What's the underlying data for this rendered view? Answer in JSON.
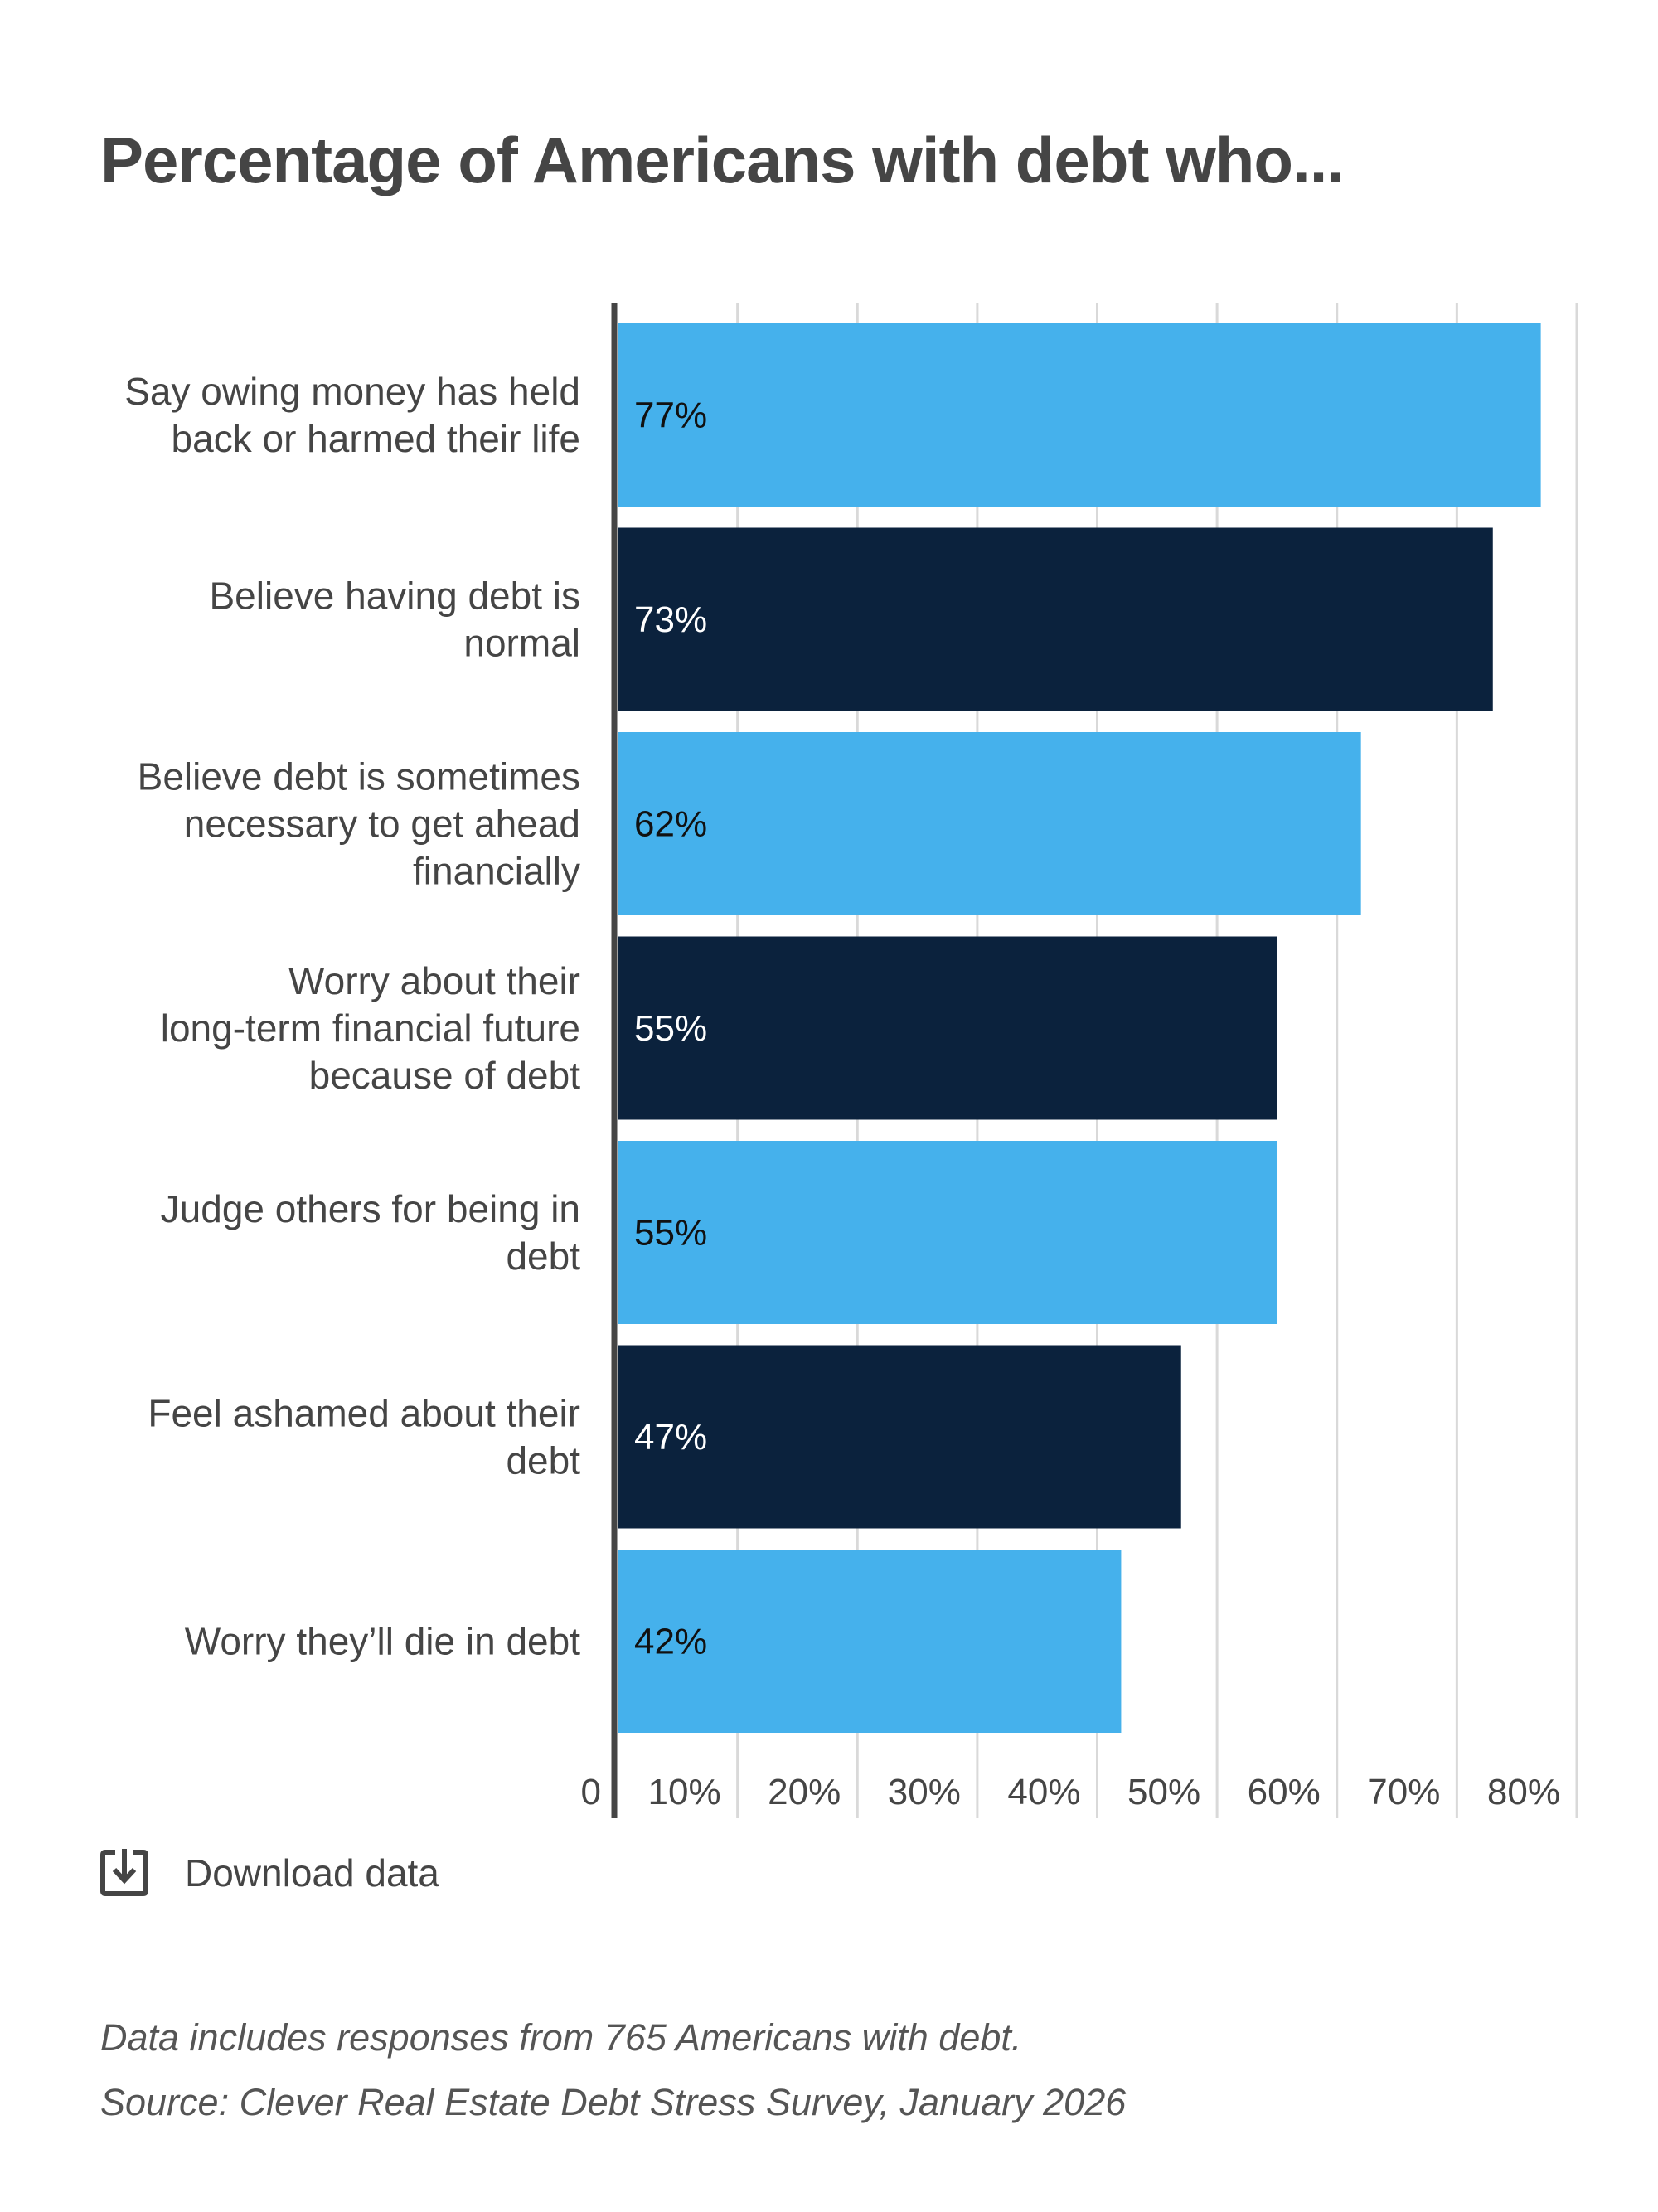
{
  "chart_data": {
    "type": "bar",
    "orientation": "horizontal",
    "title": "Percentage of Americans with debt who...",
    "categories": [
      [
        "Say owing money has held",
        "back or harmed their life"
      ],
      [
        "Believe having debt is",
        "normal"
      ],
      [
        "Believe debt is sometimes",
        "necessary to get ahead",
        "financially"
      ],
      [
        "Worry about their",
        "long-term financial future",
        "because of debt"
      ],
      [
        "Judge others for being in",
        "debt"
      ],
      [
        "Feel ashamed about their",
        "debt"
      ],
      [
        "Worry they’ll die in debt"
      ]
    ],
    "values": [
      77,
      73,
      62,
      55,
      55,
      47,
      42
    ],
    "data_labels": [
      "77%",
      "73%",
      "62%",
      "55%",
      "55%",
      "47%",
      "42%"
    ],
    "xlim": [
      0,
      80
    ],
    "x_ticks": [
      0,
      10,
      20,
      30,
      40,
      50,
      60,
      70,
      80
    ],
    "x_tick_labels": [
      "0",
      "10%",
      "20%",
      "30%",
      "40%",
      "50%",
      "60%",
      "70%",
      "80%"
    ],
    "grid": true,
    "colors": [
      "#45B1EC",
      "#0B223D"
    ],
    "label_colors": [
      "#111111",
      "#FFFFFF"
    ]
  },
  "download": {
    "label": "Download data",
    "icon": "download-icon"
  },
  "notes": [
    "Data includes responses from 765 Americans with debt.",
    "Source: Clever Real Estate Debt Stress Survey, January 2026"
  ]
}
